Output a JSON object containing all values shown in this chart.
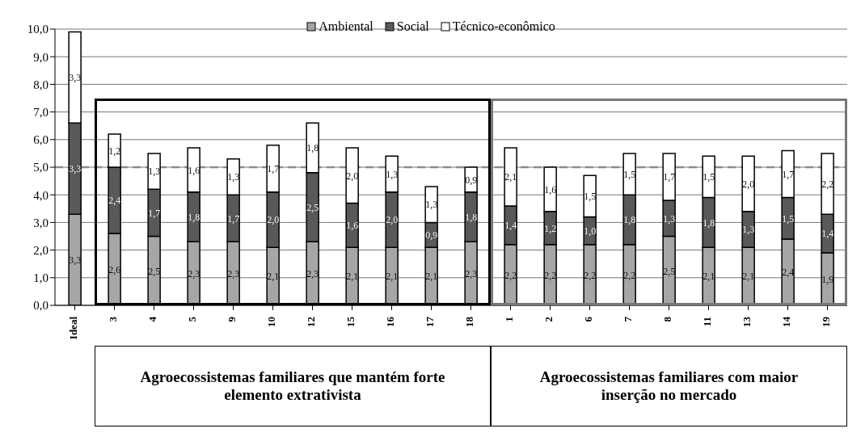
{
  "chart_data": {
    "type": "bar",
    "stacked": true,
    "categories": [
      "Ideal",
      "3",
      "4",
      "5",
      "9",
      "10",
      "12",
      "15",
      "16",
      "17",
      "18",
      "1",
      "2",
      "6",
      "7",
      "8",
      "11",
      "13",
      "14",
      "19"
    ],
    "series": [
      {
        "name": "Ambiental",
        "color": "#a6a6a6",
        "values": [
          3.3,
          2.6,
          2.5,
          2.3,
          2.3,
          2.1,
          2.3,
          2.1,
          2.1,
          2.1,
          2.3,
          2.2,
          2.2,
          2.2,
          2.2,
          2.5,
          2.1,
          2.1,
          2.4,
          1.9
        ],
        "value_labels": [
          "3,3",
          "2,6",
          "2,5",
          "2,3",
          "2,3",
          "2,1",
          "2,3",
          "2,1",
          "2,1",
          "2,1",
          "2,3",
          "2,2",
          "2,2",
          "2,2",
          "2,2",
          "2,5",
          "2,1",
          "2,1",
          "2,4",
          "1,9"
        ]
      },
      {
        "name": "Social",
        "color": "#595959",
        "values": [
          3.3,
          2.4,
          1.7,
          1.8,
          1.7,
          2.0,
          2.5,
          1.6,
          2.0,
          0.9,
          1.8,
          1.4,
          1.2,
          1.0,
          1.8,
          1.3,
          1.8,
          1.3,
          1.5,
          1.4
        ],
        "value_labels": [
          "3,3",
          "2,4",
          "1,7",
          "1,8",
          "1,7",
          "2,0",
          "2,5",
          "1,6",
          "2,0",
          "0,9",
          "1,8",
          "1,4",
          "1,2",
          "1,0",
          "1,8",
          "1,3",
          "1,8",
          "1,3",
          "1,5",
          "1,4"
        ]
      },
      {
        "name": "Técnico-econômico",
        "color": "#ffffff",
        "values": [
          3.3,
          1.2,
          1.3,
          1.6,
          1.3,
          1.7,
          1.8,
          2.0,
          1.3,
          1.3,
          0.9,
          2.1,
          1.6,
          1.5,
          1.5,
          1.7,
          1.5,
          2.0,
          1.7,
          2.2
        ],
        "value_labels": [
          "3,3",
          "1,2",
          "1,3",
          "1,6",
          "1,3",
          "1,7",
          "1,8",
          "2,0",
          "1,3",
          "1,3",
          "0,9",
          "2,1",
          "1,6",
          "1,5",
          "1,5",
          "1,7",
          "1,5",
          "2,0",
          "1,7",
          "2,2"
        ]
      }
    ],
    "ylim": [
      0,
      10
    ],
    "yticks": [
      {
        "value": 0,
        "label": "0,0"
      },
      {
        "value": 1,
        "label": "1,0"
      },
      {
        "value": 2,
        "label": "2,0"
      },
      {
        "value": 3,
        "label": "3,0"
      },
      {
        "value": 4,
        "label": "4,0"
      },
      {
        "value": 5,
        "label": "5,0"
      },
      {
        "value": 6,
        "label": "6,0"
      },
      {
        "value": 7,
        "label": "7,0"
      },
      {
        "value": 8,
        "label": "8,0"
      },
      {
        "value": 9,
        "label": "9,0"
      },
      {
        "value": 10,
        "label": "10,0"
      }
    ],
    "grid": "y",
    "legend": "top",
    "ref_lines": [
      {
        "axis": "y",
        "value": 5,
        "color": "#8c8c8c",
        "line_style": "dashed"
      }
    ],
    "annotations": [
      "Agroecossistemas familiares que mantém forte elemento extrativista",
      "Agroecossistemas familiares com maior inserção no mercado"
    ]
  }
}
